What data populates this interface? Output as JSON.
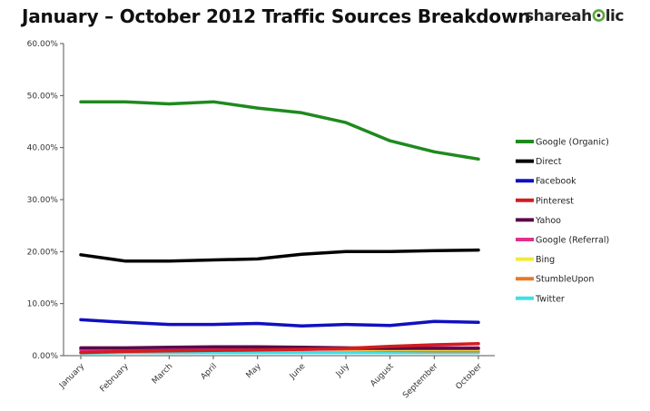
{
  "colors": {
    "Google (Organic)": "#1e8a1e",
    "Direct": "#000000",
    "Facebook": "#1010c0",
    "Pinterest": "#d21d1d",
    "Yahoo": "#5a0a4a",
    "Google (Referral)": "#e0308c",
    "Bing": "#f2ea3a",
    "StumbleUpon": "#e67a28",
    "Twitter": "#3ee0e8",
    "logo_text": "#222222",
    "logo_accent": "#5aa83a"
  },
  "logo": {
    "text_before": "shareah",
    "text_after": "lic",
    "icon": "eye-logo-icon"
  },
  "chart_data": {
    "type": "line",
    "title": "January – October 2012 Traffic Sources Breakdown",
    "xlabel": "",
    "ylabel": "",
    "categories": [
      "January",
      "February",
      "March",
      "April",
      "May",
      "June",
      "July",
      "August",
      "September",
      "October"
    ],
    "y_ticks": [
      "0.00%",
      "10.00%",
      "20.00%",
      "30.00%",
      "40.00%",
      "50.00%",
      "60.00%"
    ],
    "ylim": [
      0,
      60
    ],
    "grid": false,
    "legend_position": "right",
    "series": [
      {
        "name": "Google (Organic)",
        "values": [
          48.8,
          48.8,
          48.4,
          48.8,
          47.6,
          46.7,
          44.8,
          41.3,
          39.2,
          37.8
        ]
      },
      {
        "name": "Direct",
        "values": [
          19.4,
          18.2,
          18.2,
          18.4,
          18.6,
          19.5,
          20.0,
          20.0,
          20.2,
          20.3
        ]
      },
      {
        "name": "Facebook",
        "values": [
          6.9,
          6.4,
          6.0,
          6.0,
          6.2,
          5.7,
          6.0,
          5.8,
          6.6,
          6.4
        ]
      },
      {
        "name": "Pinterest",
        "values": [
          0.6,
          0.8,
          0.9,
          1.0,
          1.1,
          1.2,
          1.4,
          1.8,
          2.1,
          2.3
        ]
      },
      {
        "name": "Yahoo",
        "values": [
          1.5,
          1.5,
          1.6,
          1.7,
          1.7,
          1.6,
          1.5,
          1.4,
          1.4,
          1.4
        ]
      },
      {
        "name": "Google (Referral)",
        "values": [
          1.1,
          1.1,
          1.1,
          1.2,
          1.2,
          1.2,
          1.3,
          1.4,
          1.5,
          1.5
        ]
      },
      {
        "name": "Bing",
        "values": [
          1.2,
          1.2,
          1.3,
          1.3,
          1.3,
          1.3,
          1.2,
          1.2,
          1.2,
          1.2
        ]
      },
      {
        "name": "StumbleUpon",
        "values": [
          1.3,
          1.4,
          1.5,
          1.5,
          1.4,
          1.3,
          1.2,
          1.0,
          0.9,
          0.9
        ]
      },
      {
        "name": "Twitter",
        "values": [
          0.5,
          0.6,
          0.6,
          0.6,
          0.6,
          0.6,
          0.6,
          0.6,
          0.6,
          0.6
        ]
      }
    ]
  }
}
